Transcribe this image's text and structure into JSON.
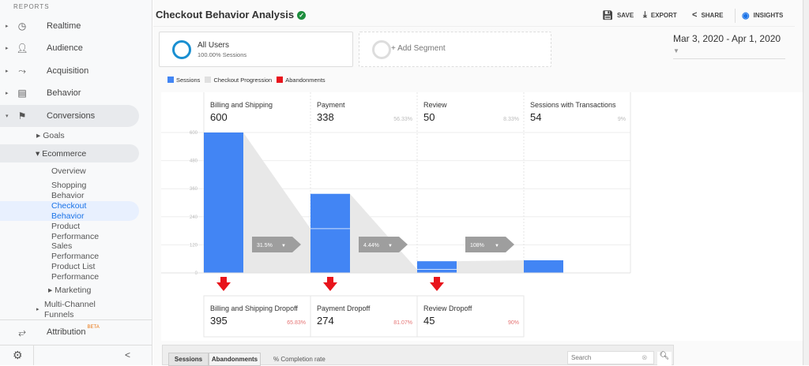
{
  "sidebar": {
    "section": "REPORTS",
    "items": [
      {
        "label": "Realtime",
        "icon": "clock-icon"
      },
      {
        "label": "Audience",
        "icon": "person-icon"
      },
      {
        "label": "Acquisition",
        "icon": "acquisition-icon"
      },
      {
        "label": "Behavior",
        "icon": "window-icon"
      },
      {
        "label": "Conversions",
        "icon": "flag-icon"
      }
    ],
    "goals": "Goals",
    "ecommerce": "Ecommerce",
    "ecom_items": [
      "Overview",
      "Shopping Behavior",
      "Checkout Behavior",
      "Product Performance",
      "Sales Performance",
      "Product List Performance"
    ],
    "marketing": "Marketing",
    "mcf": "Multi-Channel Funnels",
    "attribution": "Attribution",
    "beta": "BETA",
    "collapse": "<"
  },
  "header": {
    "title": "Checkout Behavior Analysis",
    "save": "SAVE",
    "export": "EXPORT",
    "share": "SHARE",
    "insights": "INSIGHTS"
  },
  "segments": {
    "name": "All Users",
    "sub": "100.00% Sessions",
    "add": "+ Add Segment"
  },
  "date_range": "Mar 3, 2020 - Apr 1, 2020",
  "legend": [
    "Sessions",
    "Checkout Progression",
    "Abandonments"
  ],
  "colors": {
    "sessions": "#4285f4",
    "progression": "#e8e8e8",
    "abandon": "#e8141c"
  },
  "chart_data": {
    "type": "bar",
    "ylim": [
      0,
      600
    ],
    "yticks": [
      0,
      120,
      240,
      360,
      480,
      600
    ],
    "steps": [
      {
        "name": "Billing and Shipping",
        "value": 600,
        "pct": "",
        "progression": "31.5%",
        "dropoff_name": "Billing and Shipping Dropoff",
        "dropoff": 395,
        "dropoff_pct": "65.83%"
      },
      {
        "name": "Payment",
        "value": 338,
        "pct": "56.33%",
        "progression": "4.44%",
        "dropoff_name": "Payment Dropoff",
        "dropoff": 274,
        "dropoff_pct": "81.07%"
      },
      {
        "name": "Review",
        "value": 50,
        "pct": "8.33%",
        "progression": "108%",
        "dropoff_name": "Review Dropoff",
        "dropoff": 45,
        "dropoff_pct": "90%"
      },
      {
        "name": "Sessions with Transactions",
        "value": 54,
        "pct": "9%"
      }
    ]
  },
  "table": {
    "tabs": [
      "Sessions",
      "Abandonments"
    ],
    "metric": "% Completion rate",
    "search_placeholder": "Search"
  }
}
